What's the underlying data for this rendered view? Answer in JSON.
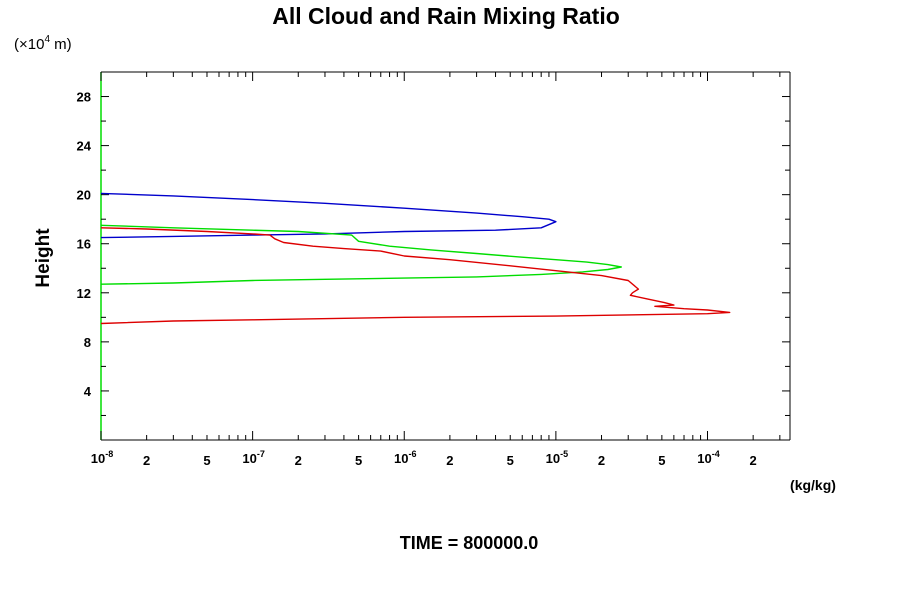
{
  "chart_data": {
    "type": "line",
    "title": "All Cloud and Rain Mixing Ratio",
    "y_unit": "(×10",
    "y_unit_exp": "4",
    "y_unit_tail": " m)",
    "ylabel": "Height",
    "xunit": "(kg/kg)",
    "time_label": "TIME = 800000.0",
    "xscale": "log",
    "xlim": [
      1e-08,
      0.00035
    ],
    "ylim": [
      0,
      30
    ],
    "y_ticks": [
      "4",
      "8",
      "12",
      "16",
      "20",
      "24",
      "28"
    ],
    "x_major_ticks": [
      {
        "base": "10",
        "exp": "-8"
      },
      {
        "base": "10",
        "exp": "-7"
      },
      {
        "base": "10",
        "exp": "-6"
      },
      {
        "base": "10",
        "exp": "-5"
      },
      {
        "base": "10",
        "exp": "-4"
      }
    ],
    "x_minor_labels": [
      "2",
      "5"
    ],
    "series": [
      {
        "color": "#0000cc",
        "points": [
          [
            1e-08,
            20.1
          ],
          [
            3e-08,
            19.9
          ],
          [
            1e-07,
            19.6
          ],
          [
            3e-07,
            19.3
          ],
          [
            1e-06,
            18.9
          ],
          [
            3e-06,
            18.5
          ],
          [
            6e-06,
            18.2
          ],
          [
            9e-06,
            18.0
          ],
          [
            1e-05,
            17.8
          ],
          [
            8e-06,
            17.3
          ],
          [
            4e-06,
            17.1
          ],
          [
            1e-06,
            17.0
          ],
          [
            3e-07,
            16.8
          ],
          [
            1e-07,
            16.7
          ],
          [
            3e-08,
            16.6
          ],
          [
            1e-08,
            16.5
          ]
        ]
      },
      {
        "color": "#00dd00",
        "points": [
          [
            1e-08,
            17.5
          ],
          [
            3e-08,
            17.3
          ],
          [
            1e-07,
            17.1
          ],
          [
            2e-07,
            17.0
          ],
          [
            4.5e-07,
            16.7
          ],
          [
            5e-07,
            16.2
          ],
          [
            8e-07,
            15.8
          ],
          [
            1.5e-06,
            15.5
          ],
          [
            3e-06,
            15.2
          ],
          [
            6e-06,
            14.9
          ],
          [
            1e-05,
            14.7
          ],
          [
            1.6e-05,
            14.5
          ],
          [
            2.2e-05,
            14.3
          ],
          [
            2.7e-05,
            14.1
          ],
          [
            2.2e-05,
            13.9
          ],
          [
            1.5e-05,
            13.7
          ],
          [
            8e-06,
            13.5
          ],
          [
            3e-06,
            13.3
          ],
          [
            1e-06,
            13.2
          ],
          [
            3e-07,
            13.1
          ],
          [
            1e-07,
            13.0
          ],
          [
            3e-08,
            12.8
          ],
          [
            1e-08,
            12.7
          ]
        ]
      },
      {
        "color": "#dd0000",
        "points": [
          [
            1e-08,
            17.3
          ],
          [
            2e-08,
            17.2
          ],
          [
            5e-08,
            17.0
          ],
          [
            1e-07,
            16.8
          ],
          [
            1.3e-07,
            16.7
          ],
          [
            1.4e-07,
            16.4
          ],
          [
            1.6e-07,
            16.1
          ],
          [
            2.5e-07,
            15.8
          ],
          [
            4e-07,
            15.6
          ],
          [
            7e-07,
            15.4
          ],
          [
            1e-06,
            15.0
          ],
          [
            2e-06,
            14.7
          ],
          [
            5e-06,
            14.2
          ],
          [
            1e-05,
            13.8
          ],
          [
            2e-05,
            13.4
          ],
          [
            3e-05,
            13.0
          ],
          [
            3.5e-05,
            12.3
          ],
          [
            3.2e-05,
            12.0
          ],
          [
            3.1e-05,
            11.8
          ],
          [
            4e-05,
            11.5
          ],
          [
            5.2e-05,
            11.2
          ],
          [
            6e-05,
            11.0
          ],
          [
            4.5e-05,
            10.9
          ],
          [
            7e-05,
            10.7
          ],
          [
            0.0001,
            10.6
          ],
          [
            0.00014,
            10.4
          ],
          [
            0.0001,
            10.3
          ],
          [
            3e-05,
            10.2
          ],
          [
            1e-05,
            10.1
          ],
          [
            1e-06,
            10.0
          ],
          [
            1e-07,
            9.8
          ],
          [
            3e-08,
            9.7
          ],
          [
            1e-08,
            9.5
          ]
        ]
      }
    ],
    "frame_left_color": "#00dd00"
  }
}
